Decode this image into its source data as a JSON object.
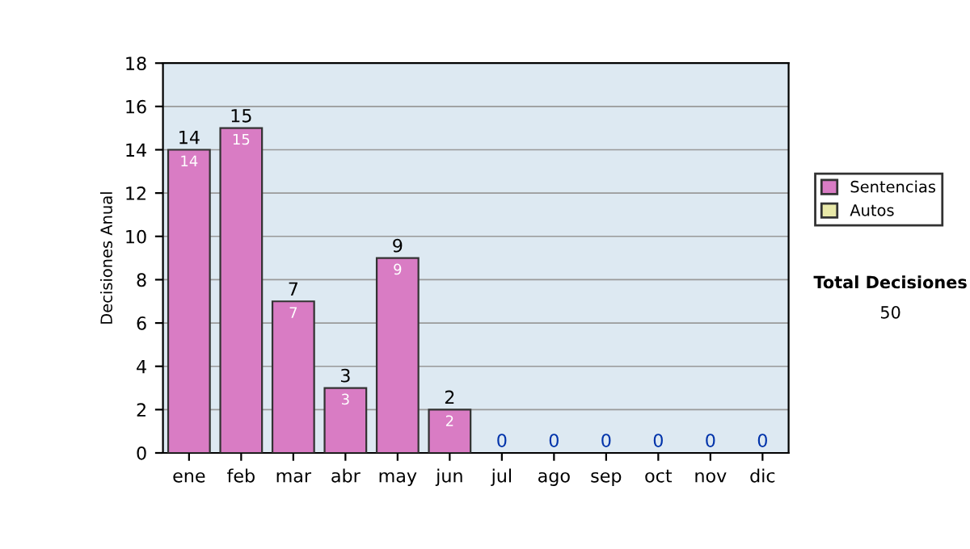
{
  "chart_data": {
    "type": "bar",
    "stacked": true,
    "ylabel": "Decisiones Anual",
    "categories": [
      "ene",
      "feb",
      "mar",
      "abr",
      "may",
      "jun",
      "jul",
      "ago",
      "sep",
      "oct",
      "nov",
      "dic"
    ],
    "series": [
      {
        "name": "Sentencias",
        "color": "#d97cc4",
        "values": [
          14,
          15,
          7,
          3,
          9,
          2,
          0,
          0,
          0,
          0,
          0,
          0
        ],
        "value_labels": [
          "14",
          "15",
          "7",
          "3",
          "9",
          "2",
          null,
          null,
          null,
          null,
          null,
          null
        ]
      },
      {
        "name": "Autos",
        "color": "#e8e8a8",
        "values": [
          null,
          null,
          null,
          null,
          null,
          null,
          null,
          null,
          null,
          null,
          null,
          null
        ]
      }
    ],
    "totals": [
      "14",
      "15",
      "7",
      "3",
      "9",
      "2",
      "0",
      "0",
      "0",
      "0",
      "0",
      "0"
    ],
    "ylim": [
      0,
      18
    ],
    "yticks": [
      0,
      2,
      4,
      6,
      8,
      10,
      12,
      14,
      16,
      18
    ],
    "grid": "y",
    "legend": "right",
    "annotations": [
      "Total Decisiones",
      "50"
    ]
  }
}
